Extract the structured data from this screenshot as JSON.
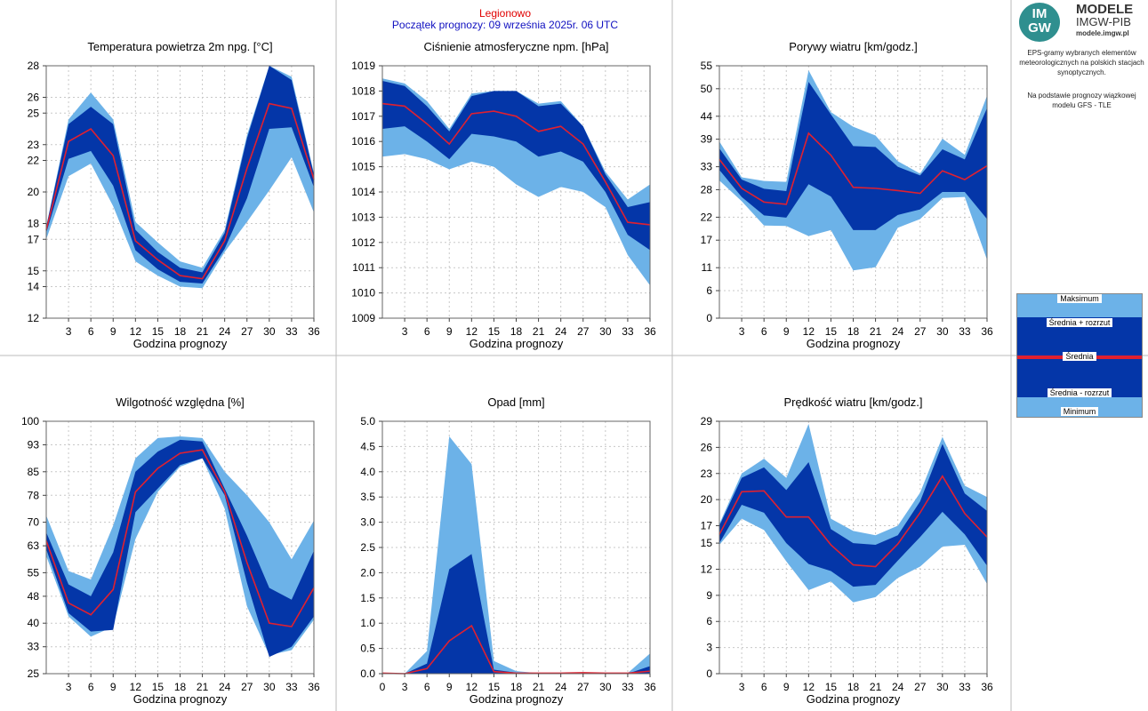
{
  "header": {
    "station": "Legionowo",
    "forecast_start": "Początek prognozy: 09 września 2025r. 06 UTC"
  },
  "logo": {
    "line1": "MODELE",
    "line2": "IMGW-PIB",
    "line3": "modele.imgw.pl",
    "badge_top": "IM",
    "badge_bottom": "GW"
  },
  "info": {
    "description": "EPS-gramy wybranych elementów meteorologicznych na polskich stacjach synoptycznych.",
    "source": "Na podstawie prognozy wiązkowej modelu GFS - TLE"
  },
  "legend": {
    "max": "Maksimum",
    "mean_plus": "Średnia + rozrzut",
    "mean": "Średnia",
    "mean_minus": "Średnia - rozrzut",
    "min": "Minimum"
  },
  "colors": {
    "min_max_band": "#6cb2e8",
    "spread_band": "#0436a8",
    "mean_line": "#e02030",
    "grid": "#c8c8c8"
  },
  "chart_data": [
    {
      "type": "area",
      "title": "Temperatura powietrza 2m npg. [°C]",
      "xlabel": "Godzina prognozy",
      "x": [
        0,
        3,
        6,
        9,
        12,
        15,
        18,
        21,
        24,
        27,
        30,
        33,
        36
      ],
      "xticks": [
        3,
        6,
        9,
        12,
        15,
        18,
        21,
        24,
        27,
        30,
        33,
        36
      ],
      "ylim": [
        12,
        28
      ],
      "yticks": [
        12,
        14,
        15,
        17,
        18,
        20,
        22,
        23,
        25,
        26,
        28
      ],
      "series": [
        {
          "role": "max",
          "values": [
            17.8,
            24.6,
            26.3,
            24.6,
            18.1,
            16.8,
            15.6,
            15.2,
            17.6,
            23.6,
            28.0,
            27.3,
            21.2
          ]
        },
        {
          "role": "mean_plus_spread",
          "values": [
            17.8,
            24.3,
            25.4,
            24.3,
            17.6,
            16.2,
            15.2,
            14.9,
            17.4,
            23.4,
            28.0,
            27.1,
            21.1
          ]
        },
        {
          "role": "mean",
          "values": [
            17.6,
            23.2,
            24.0,
            22.3,
            16.9,
            15.7,
            14.7,
            14.5,
            16.9,
            21.5,
            25.6,
            25.3,
            20.8
          ]
        },
        {
          "role": "mean_minus_spread",
          "values": [
            17.4,
            22.1,
            22.6,
            20.4,
            16.3,
            15.1,
            14.3,
            14.2,
            16.4,
            19.6,
            24.0,
            24.1,
            20.3
          ]
        },
        {
          "role": "min",
          "values": [
            17.0,
            21.0,
            21.8,
            19.1,
            15.6,
            14.7,
            14.0,
            13.9,
            16.2,
            18.1,
            20.1,
            22.2,
            18.7
          ]
        }
      ]
    },
    {
      "type": "area",
      "title": "Ciśnienie atmosferyczne npm. [hPa]",
      "xlabel": "Godzina prognozy",
      "x": [
        0,
        3,
        6,
        9,
        12,
        15,
        18,
        21,
        24,
        27,
        30,
        33,
        36
      ],
      "xticks": [
        3,
        6,
        9,
        12,
        15,
        18,
        21,
        24,
        27,
        30,
        33,
        36
      ],
      "ylim": [
        1009,
        1019
      ],
      "yticks": [
        1009,
        1010,
        1011,
        1012,
        1013,
        1014,
        1015,
        1016,
        1017,
        1018,
        1019
      ],
      "series": [
        {
          "role": "max",
          "values": [
            1018.5,
            1018.3,
            1017.6,
            1016.5,
            1017.9,
            1018.0,
            1018.0,
            1017.5,
            1017.6,
            1016.6,
            1014.8,
            1013.7,
            1014.3
          ]
        },
        {
          "role": "mean_plus_spread",
          "values": [
            1018.4,
            1018.2,
            1017.4,
            1016.4,
            1017.8,
            1018.0,
            1018.0,
            1017.4,
            1017.5,
            1016.6,
            1014.7,
            1013.4,
            1013.6
          ]
        },
        {
          "role": "mean",
          "values": [
            1017.5,
            1017.4,
            1016.7,
            1015.9,
            1017.1,
            1017.2,
            1017.0,
            1016.4,
            1016.6,
            1015.9,
            1014.4,
            1012.8,
            1012.7
          ]
        },
        {
          "role": "mean_minus_spread",
          "values": [
            1016.5,
            1016.6,
            1016.0,
            1015.3,
            1016.3,
            1016.2,
            1016.0,
            1015.4,
            1015.6,
            1015.2,
            1014.0,
            1012.3,
            1011.7
          ]
        },
        {
          "role": "min",
          "values": [
            1015.4,
            1015.5,
            1015.3,
            1014.9,
            1015.2,
            1015.0,
            1014.3,
            1013.8,
            1014.2,
            1014.0,
            1013.4,
            1011.5,
            1010.3
          ]
        }
      ]
    },
    {
      "type": "area",
      "title": "Porywy wiatru [km/godz.]",
      "xlabel": "Godzina prognozy",
      "x": [
        0,
        3,
        6,
        9,
        12,
        15,
        18,
        21,
        24,
        27,
        30,
        33,
        36
      ],
      "xticks": [
        3,
        6,
        9,
        12,
        15,
        18,
        21,
        24,
        27,
        30,
        33,
        36
      ],
      "ylim": [
        0,
        55
      ],
      "yticks": [
        0,
        6,
        11,
        17,
        22,
        28,
        33,
        39,
        44,
        50,
        55
      ],
      "series": [
        {
          "role": "max",
          "values": [
            38.5,
            30.7,
            29.9,
            29.7,
            54.0,
            44.9,
            41.7,
            39.8,
            34.2,
            31.5,
            39.1,
            35.6,
            48.5
          ]
        },
        {
          "role": "mean_plus_spread",
          "values": [
            37.0,
            30.2,
            28.2,
            27.7,
            51.5,
            44.4,
            37.5,
            37.3,
            33.0,
            31.1,
            36.8,
            34.6,
            45.8
          ]
        },
        {
          "role": "mean",
          "values": [
            34.6,
            28.3,
            25.3,
            24.8,
            40.3,
            35.5,
            28.5,
            28.3,
            27.8,
            27.2,
            32.1,
            30.2,
            33.2
          ]
        },
        {
          "role": "mean_minus_spread",
          "values": [
            32.3,
            26.4,
            22.4,
            21.9,
            29.2,
            26.5,
            19.2,
            19.2,
            22.5,
            23.7,
            27.5,
            27.5,
            21.6
          ]
        },
        {
          "role": "min",
          "values": [
            30.0,
            25.5,
            20.2,
            20.1,
            17.9,
            19.2,
            10.4,
            11.1,
            19.7,
            21.6,
            26.2,
            26.4,
            12.7
          ]
        }
      ]
    },
    {
      "type": "area",
      "title": "Wilgotność względna [%]",
      "xlabel": "Godzina prognozy",
      "x": [
        0,
        3,
        6,
        9,
        12,
        15,
        18,
        21,
        24,
        27,
        30,
        33,
        36
      ],
      "xticks": [
        3,
        6,
        9,
        12,
        15,
        18,
        21,
        24,
        27,
        30,
        33,
        36
      ],
      "ylim": [
        25,
        100
      ],
      "yticks": [
        25,
        33,
        40,
        48,
        55,
        63,
        70,
        78,
        85,
        93,
        100
      ],
      "series": [
        {
          "role": "max",
          "values": [
            72.0,
            55.5,
            53.0,
            69.0,
            89.0,
            95.0,
            95.5,
            95.0,
            85.0,
            78.0,
            70.0,
            59.0,
            70.5
          ]
        },
        {
          "role": "mean_plus_spread",
          "values": [
            67.0,
            51.5,
            48.0,
            61.0,
            85.0,
            91.0,
            94.5,
            94.0,
            80.0,
            66.0,
            50.5,
            47.0,
            61.5
          ]
        },
        {
          "role": "mean",
          "values": [
            64.5,
            46.0,
            42.5,
            50.0,
            79.0,
            86.0,
            90.5,
            91.5,
            79.0,
            58.0,
            40.0,
            39.0,
            50.5
          ]
        },
        {
          "role": "mean_minus_spread",
          "values": [
            62.0,
            43.0,
            37.5,
            38.0,
            73.0,
            80.0,
            87.0,
            89.0,
            78.0,
            52.0,
            30.0,
            33.0,
            42.0
          ]
        },
        {
          "role": "min",
          "values": [
            60.0,
            42.0,
            36.0,
            39.0,
            65.0,
            79.0,
            86.5,
            89.0,
            74.0,
            45.0,
            30.5,
            32.0,
            41.0
          ]
        }
      ]
    },
    {
      "type": "area",
      "title": "Opad [mm]",
      "xlabel": "Godzina prognozy",
      "x": [
        0,
        3,
        6,
        9,
        12,
        15,
        18,
        21,
        24,
        27,
        30,
        33,
        36
      ],
      "xticks": [
        0,
        3,
        6,
        9,
        12,
        15,
        18,
        21,
        24,
        27,
        30,
        33,
        36
      ],
      "ylim": [
        0,
        5
      ],
      "yticks": [
        0.0,
        0.5,
        1.0,
        1.5,
        2.0,
        2.5,
        3.0,
        3.5,
        4.0,
        4.5,
        5.0
      ],
      "ytick_labels": [
        "0.0",
        "0.5",
        "1.0",
        "1.5",
        "2.0",
        "2.5",
        "3.0",
        "3.5",
        "4.0",
        "4.5",
        "5.0"
      ],
      "series": [
        {
          "role": "max",
          "values": [
            0.01,
            0.0,
            0.45,
            4.7,
            4.15,
            0.25,
            0.05,
            0.01,
            0.01,
            0.02,
            0.01,
            0.01,
            0.4
          ]
        },
        {
          "role": "mean_plus_spread",
          "values": [
            0.0,
            0.0,
            0.2,
            2.07,
            2.37,
            0.08,
            0.02,
            0.0,
            0.0,
            0.01,
            0.0,
            0.0,
            0.15
          ]
        },
        {
          "role": "mean",
          "values": [
            0.01,
            0.0,
            0.1,
            0.65,
            0.95,
            0.04,
            0.01,
            0.01,
            0.01,
            0.02,
            0.01,
            0.01,
            0.05
          ]
        },
        {
          "role": "mean_minus_spread",
          "values": [
            0.0,
            0.0,
            0.0,
            0.0,
            0.0,
            0.0,
            0.0,
            0.0,
            0.0,
            0.0,
            0.0,
            0.0,
            0.0
          ]
        },
        {
          "role": "min",
          "values": [
            0.0,
            0.0,
            0.0,
            0.0,
            0.0,
            0.0,
            0.0,
            0.0,
            0.0,
            0.0,
            0.0,
            0.0,
            0.0
          ]
        }
      ]
    },
    {
      "type": "area",
      "title": "Prędkość wiatru [km/godz.]",
      "xlabel": "Godzina prognozy",
      "x": [
        0,
        3,
        6,
        9,
        12,
        15,
        18,
        21,
        24,
        27,
        30,
        33,
        36
      ],
      "xticks": [
        3,
        6,
        9,
        12,
        15,
        18,
        21,
        24,
        27,
        30,
        33,
        36
      ],
      "ylim": [
        0,
        29
      ],
      "yticks": [
        0,
        3,
        6,
        9,
        12,
        15,
        17,
        20,
        23,
        26,
        29
      ],
      "series": [
        {
          "role": "max",
          "values": [
            17.2,
            23.0,
            24.7,
            22.5,
            28.7,
            17.8,
            16.4,
            15.9,
            17.0,
            20.8,
            27.2,
            21.6,
            20.3
          ]
        },
        {
          "role": "mean_plus_spread",
          "values": [
            17.0,
            22.5,
            23.7,
            21.1,
            24.3,
            16.6,
            15.0,
            14.8,
            15.9,
            19.8,
            26.4,
            20.7,
            18.7
          ]
        },
        {
          "role": "mean",
          "values": [
            16.0,
            20.9,
            21.0,
            18.0,
            18.0,
            14.8,
            12.5,
            12.3,
            14.9,
            18.5,
            22.7,
            18.4,
            15.7
          ]
        },
        {
          "role": "mean_minus_spread",
          "values": [
            15.0,
            19.4,
            18.5,
            15.0,
            12.6,
            11.8,
            10.0,
            10.2,
            13.0,
            15.7,
            18.6,
            16.0,
            12.4
          ]
        },
        {
          "role": "min",
          "values": [
            14.8,
            17.8,
            16.5,
            12.9,
            9.6,
            10.6,
            8.2,
            8.8,
            11.0,
            12.3,
            14.6,
            14.8,
            10.3
          ]
        }
      ]
    }
  ]
}
